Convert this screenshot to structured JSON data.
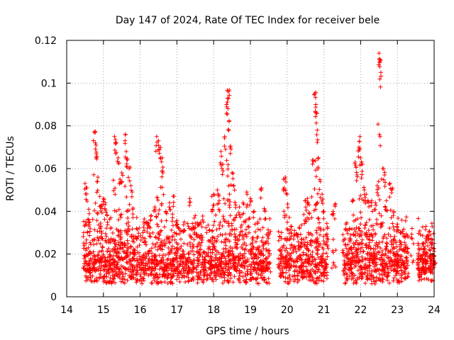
{
  "chart_data": {
    "type": "scatter",
    "title": "Day 147 of 2024, Rate Of TEC Index for receiver bele",
    "xlabel": "GPS time / hours",
    "ylabel": "ROTI / TECUs",
    "xlim": [
      14,
      24
    ],
    "ylim": [
      0,
      0.12
    ],
    "xticks": [
      14,
      15,
      16,
      17,
      18,
      19,
      20,
      21,
      22,
      23,
      24
    ],
    "yticks": [
      0,
      0.02,
      0.04,
      0.06,
      0.08,
      0.1,
      0.12
    ],
    "ytick_labels": [
      "0",
      "0.02",
      "0.04",
      "0.06",
      "0.08",
      "0.1",
      "0.12"
    ],
    "grid": true,
    "marker": "+",
    "color": "#ff0000",
    "series": [
      {
        "name": "ROTI",
        "segments": [
          [
            14.45,
            19.55
          ],
          [
            19.75,
            21.1
          ],
          [
            21.5,
            23.3
          ],
          [
            23.55,
            24.0
          ]
        ],
        "base_level": 0.012,
        "points": [
          [
            14.5,
            0.053
          ],
          [
            14.55,
            0.051
          ],
          [
            14.6,
            0.041
          ],
          [
            14.62,
            0.035
          ],
          [
            14.75,
            0.077
          ],
          [
            14.78,
            0.072
          ],
          [
            14.8,
            0.071
          ],
          [
            14.85,
            0.056
          ],
          [
            14.9,
            0.047
          ],
          [
            14.95,
            0.043
          ],
          [
            15.0,
            0.046
          ],
          [
            15.05,
            0.044
          ],
          [
            15.1,
            0.038
          ],
          [
            15.2,
            0.037
          ],
          [
            15.3,
            0.075
          ],
          [
            15.35,
            0.072
          ],
          [
            15.4,
            0.065
          ],
          [
            15.45,
            0.055
          ],
          [
            15.5,
            0.058
          ],
          [
            15.6,
            0.076
          ],
          [
            15.62,
            0.068
          ],
          [
            15.65,
            0.064
          ],
          [
            15.7,
            0.06
          ],
          [
            15.75,
            0.052
          ],
          [
            15.8,
            0.041
          ],
          [
            15.9,
            0.032
          ],
          [
            16.1,
            0.035
          ],
          [
            16.2,
            0.034
          ],
          [
            16.3,
            0.038
          ],
          [
            16.4,
            0.042
          ],
          [
            16.45,
            0.075
          ],
          [
            16.5,
            0.073
          ],
          [
            16.55,
            0.07
          ],
          [
            16.6,
            0.065
          ],
          [
            16.62,
            0.058
          ],
          [
            16.7,
            0.04
          ],
          [
            16.8,
            0.044
          ],
          [
            16.9,
            0.047
          ],
          [
            17.0,
            0.034
          ],
          [
            17.2,
            0.035
          ],
          [
            17.35,
            0.046
          ],
          [
            17.5,
            0.038
          ],
          [
            17.7,
            0.036
          ],
          [
            17.95,
            0.047
          ],
          [
            18.0,
            0.048
          ],
          [
            18.1,
            0.05
          ],
          [
            18.15,
            0.045
          ],
          [
            18.2,
            0.068
          ],
          [
            18.25,
            0.062
          ],
          [
            18.3,
            0.075
          ],
          [
            18.35,
            0.09
          ],
          [
            18.38,
            0.093
          ],
          [
            18.4,
            0.096
          ],
          [
            18.42,
            0.082
          ],
          [
            18.45,
            0.07
          ],
          [
            18.5,
            0.058
          ],
          [
            18.55,
            0.052
          ],
          [
            18.6,
            0.043
          ],
          [
            18.7,
            0.042
          ],
          [
            18.8,
            0.044
          ],
          [
            18.9,
            0.049
          ],
          [
            19.0,
            0.046
          ],
          [
            19.1,
            0.04
          ],
          [
            19.2,
            0.035
          ],
          [
            19.3,
            0.05
          ],
          [
            19.4,
            0.04
          ],
          [
            19.5,
            0.03
          ],
          [
            19.9,
            0.055
          ],
          [
            19.95,
            0.056
          ],
          [
            20.0,
            0.048
          ],
          [
            20.1,
            0.033
          ],
          [
            20.2,
            0.031
          ],
          [
            20.3,
            0.029
          ],
          [
            20.4,
            0.027
          ],
          [
            20.5,
            0.045
          ],
          [
            20.55,
            0.046
          ],
          [
            20.6,
            0.043
          ],
          [
            20.7,
            0.064
          ],
          [
            20.75,
            0.095
          ],
          [
            20.78,
            0.09
          ],
          [
            20.8,
            0.086
          ],
          [
            20.82,
            0.078
          ],
          [
            20.85,
            0.065
          ],
          [
            20.9,
            0.054
          ],
          [
            20.95,
            0.048
          ],
          [
            21.0,
            0.04
          ],
          [
            21.1,
            0.032
          ],
          [
            21.25,
            0.04
          ],
          [
            21.3,
            0.043
          ],
          [
            21.6,
            0.034
          ],
          [
            21.7,
            0.032
          ],
          [
            21.8,
            0.045
          ],
          [
            21.85,
            0.063
          ],
          [
            21.9,
            0.057
          ],
          [
            21.95,
            0.07
          ],
          [
            21.98,
            0.075
          ],
          [
            22.0,
            0.065
          ],
          [
            22.05,
            0.062
          ],
          [
            22.1,
            0.05
          ],
          [
            22.15,
            0.048
          ],
          [
            22.2,
            0.045
          ],
          [
            22.3,
            0.045
          ],
          [
            22.4,
            0.044
          ],
          [
            22.45,
            0.052
          ],
          [
            22.5,
            0.114
          ],
          [
            22.52,
            0.11
          ],
          [
            22.55,
            0.105
          ],
          [
            22.6,
            0.06
          ],
          [
            22.65,
            0.057
          ],
          [
            22.7,
            0.045
          ],
          [
            22.8,
            0.053
          ],
          [
            22.85,
            0.05
          ],
          [
            22.9,
            0.04
          ],
          [
            23.0,
            0.034
          ],
          [
            23.1,
            0.03
          ],
          [
            23.2,
            0.028
          ],
          [
            23.4,
            0.032
          ],
          [
            23.6,
            0.022
          ],
          [
            23.7,
            0.025
          ],
          [
            23.8,
            0.028
          ],
          [
            23.9,
            0.029
          ],
          [
            24.0,
            0.025
          ]
        ]
      }
    ]
  }
}
